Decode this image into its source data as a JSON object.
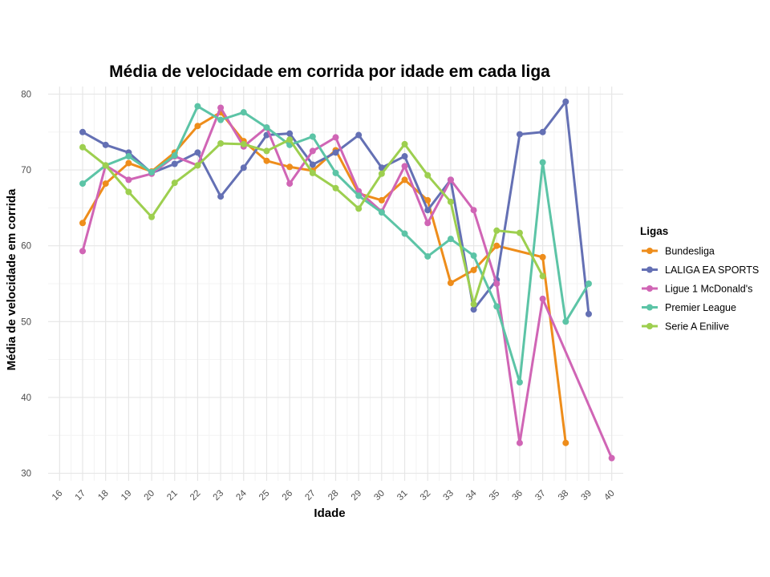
{
  "chart_data": {
    "type": "line",
    "title": "Média de velocidade em corrida por idade em cada liga",
    "xlabel": "Idade",
    "ylabel": "Média de velocidade em corrida",
    "x_ticks": [
      16,
      17,
      18,
      19,
      20,
      21,
      22,
      23,
      24,
      25,
      26,
      27,
      28,
      29,
      30,
      31,
      32,
      33,
      34,
      35,
      36,
      37,
      38,
      39,
      40
    ],
    "y_ticks": [
      30,
      40,
      50,
      60,
      70,
      80
    ],
    "xlim": [
      15.5,
      40.5
    ],
    "ylim": [
      29,
      81
    ],
    "grid": true,
    "legend": {
      "title": "Ligas",
      "position": "right"
    },
    "series": [
      {
        "name": "Bundesliga",
        "color": "#EE8D1B",
        "points": [
          [
            17,
            63
          ],
          [
            18,
            68.2
          ],
          [
            19,
            70.9
          ],
          [
            20,
            69.8
          ],
          [
            21,
            72.3
          ],
          [
            22,
            75.8
          ],
          [
            23,
            77.6
          ],
          [
            24,
            73.8
          ],
          [
            25,
            71.2
          ],
          [
            26,
            70.4
          ],
          [
            27,
            69.9
          ],
          [
            28,
            72.6
          ],
          [
            29,
            66.9
          ],
          [
            30,
            66
          ],
          [
            31,
            68.7
          ],
          [
            32,
            66
          ],
          [
            33,
            55.1
          ],
          [
            34,
            56.8
          ],
          [
            35,
            60
          ],
          [
            37,
            58.5
          ],
          [
            38,
            34
          ]
        ]
      },
      {
        "name": "LALIGA EA SPORTS",
        "color": "#6470B4",
        "points": [
          [
            17,
            75
          ],
          [
            18,
            73.3
          ],
          [
            19,
            72.3
          ],
          [
            20,
            69.6
          ],
          [
            21,
            70.8
          ],
          [
            22,
            72.3
          ],
          [
            23,
            66.5
          ],
          [
            24,
            70.3
          ],
          [
            25,
            74.6
          ],
          [
            26,
            74.8
          ],
          [
            27,
            70.7
          ],
          [
            28,
            72.3
          ],
          [
            29,
            74.6
          ],
          [
            30,
            70.3
          ],
          [
            31,
            71.8
          ],
          [
            32,
            64.7
          ],
          [
            33,
            68.7
          ],
          [
            34,
            51.6
          ],
          [
            35,
            55.5
          ],
          [
            36,
            74.7
          ],
          [
            37,
            75
          ],
          [
            38,
            79
          ],
          [
            39,
            51
          ]
        ]
      },
      {
        "name": "Ligue 1 McDonald's",
        "color": "#D065B5",
        "points": [
          [
            17,
            59.3
          ],
          [
            18,
            70.6
          ],
          [
            19,
            68.7
          ],
          [
            20,
            69.5
          ],
          [
            21,
            71.8
          ],
          [
            22,
            70.6
          ],
          [
            23,
            78.2
          ],
          [
            24,
            73.1
          ],
          [
            25,
            75.6
          ],
          [
            26,
            68.2
          ],
          [
            27,
            72.5
          ],
          [
            28,
            74.3
          ],
          [
            29,
            67.2
          ],
          [
            30,
            64.5
          ],
          [
            31,
            70.5
          ],
          [
            32,
            63
          ],
          [
            33,
            68.7
          ],
          [
            34,
            64.7
          ],
          [
            35,
            55
          ],
          [
            36,
            34
          ],
          [
            37,
            53
          ],
          [
            40,
            32
          ]
        ]
      },
      {
        "name": "Premier League",
        "color": "#5CC4A6",
        "points": [
          [
            17,
            68.2
          ],
          [
            18,
            70.6
          ],
          [
            19,
            71.8
          ],
          [
            20,
            69.7
          ],
          [
            21,
            71.9
          ],
          [
            22,
            78.4
          ],
          [
            23,
            76.6
          ],
          [
            24,
            77.6
          ],
          [
            25,
            75.6
          ],
          [
            26,
            73.3
          ],
          [
            27,
            74.4
          ],
          [
            28,
            69.6
          ],
          [
            29,
            66.6
          ],
          [
            30,
            64.4
          ],
          [
            31,
            61.6
          ],
          [
            32,
            58.6
          ],
          [
            33,
            60.9
          ],
          [
            34,
            58.7
          ],
          [
            35,
            52
          ],
          [
            36,
            42
          ],
          [
            37,
            71
          ],
          [
            38,
            50
          ],
          [
            39,
            55
          ]
        ]
      },
      {
        "name": "Serie A Enilive",
        "color": "#9DCF4F",
        "points": [
          [
            17,
            73
          ],
          [
            18,
            70.6
          ],
          [
            19,
            67.1
          ],
          [
            20,
            63.8
          ],
          [
            21,
            68.3
          ],
          [
            22,
            70.6
          ],
          [
            23,
            73.5
          ],
          [
            24,
            73.4
          ],
          [
            25,
            72.5
          ],
          [
            26,
            74
          ],
          [
            27,
            69.6
          ],
          [
            28,
            67.6
          ],
          [
            29,
            64.9
          ],
          [
            30,
            69.5
          ],
          [
            31,
            73.4
          ],
          [
            32,
            69.3
          ],
          [
            33,
            65.8
          ],
          [
            34,
            52.3
          ],
          [
            35,
            62
          ],
          [
            36,
            61.7
          ],
          [
            37,
            56
          ]
        ]
      }
    ]
  }
}
